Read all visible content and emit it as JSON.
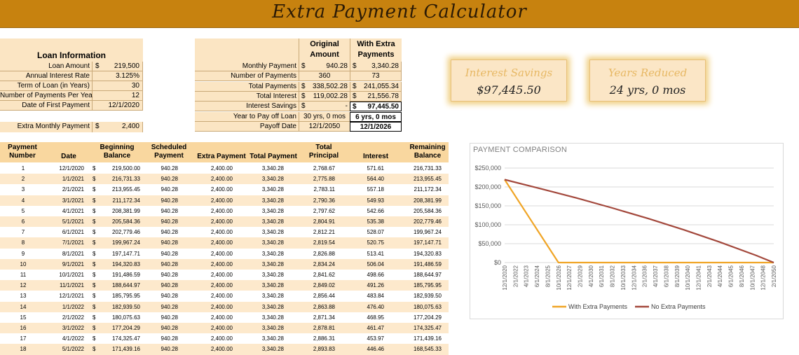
{
  "title": "Extra Payment Calculator",
  "loan_info": {
    "heading": "Loan Information",
    "rows": [
      {
        "label": "Loan Amount",
        "currency": "$",
        "value": "219,500"
      },
      {
        "label": "Annual Interest Rate",
        "currency": "",
        "value": "3.125%"
      },
      {
        "label": "Term of Loan (in Years)",
        "currency": "",
        "value": "30"
      },
      {
        "label": "Number of Payments Per Year",
        "currency": "",
        "value": "12"
      },
      {
        "label": "Date of First Payment",
        "currency": "",
        "value": "12/1/2020"
      }
    ],
    "extra_label": "Extra Monthly Payment",
    "extra_currency": "$",
    "extra_value": "2,400"
  },
  "comparison": {
    "col_original": "Original Amount",
    "col_extra": "With Extra Payments",
    "rows": [
      {
        "label": "Monthly Payment",
        "orig_cur": "$",
        "orig": "940.28",
        "extra_cur": "$",
        "extra": "3,340.28"
      },
      {
        "label": "Number of Payments",
        "orig_cur": "",
        "orig": "360",
        "extra_cur": "",
        "extra": "73"
      },
      {
        "label": "Total Payments",
        "orig_cur": "$",
        "orig": "338,502.28",
        "extra_cur": "$",
        "extra": "241,055.34"
      },
      {
        "label": "Total Interest",
        "orig_cur": "$",
        "orig": "119,002.28",
        "extra_cur": "$",
        "extra": "21,556.78"
      },
      {
        "label": "Interest Savings",
        "orig_cur": "$",
        "orig": "-",
        "extra_cur": "$",
        "extra": "97,445.50"
      },
      {
        "label": "Year to Pay off Loan",
        "orig_cur": "",
        "orig": "30 yrs, 0 mos",
        "extra_cur": "",
        "extra": "6 yrs, 0 mos"
      },
      {
        "label": "Payoff Date",
        "orig_cur": "",
        "orig": "12/1/2050",
        "extra_cur": "",
        "extra": "12/1/2026"
      }
    ]
  },
  "summary": {
    "interest_label": "Interest Savings",
    "interest_value": "$97,445.50",
    "years_label": "Years Reduced",
    "years_value": "24 yrs, 0 mos"
  },
  "amortization": {
    "headers": [
      "Payment Number",
      "Date",
      "Beginning Balance",
      "Scheduled Payment",
      "Extra Payment",
      "Total Payment",
      "Total Principal",
      "Interest",
      "Remaining Balance"
    ],
    "rows": [
      [
        "1",
        "12/1/2020",
        "219,500.00",
        "940.28",
        "2,400.00",
        "3,340.28",
        "2,768.67",
        "571.61",
        "216,731.33"
      ],
      [
        "2",
        "1/1/2021",
        "216,731.33",
        "940.28",
        "2,400.00",
        "3,340.28",
        "2,775.88",
        "564.40",
        "213,955.45"
      ],
      [
        "3",
        "2/1/2021",
        "213,955.45",
        "940.28",
        "2,400.00",
        "3,340.28",
        "2,783.11",
        "557.18",
        "211,172.34"
      ],
      [
        "4",
        "3/1/2021",
        "211,172.34",
        "940.28",
        "2,400.00",
        "3,340.28",
        "2,790.36",
        "549.93",
        "208,381.99"
      ],
      [
        "5",
        "4/1/2021",
        "208,381.99",
        "940.28",
        "2,400.00",
        "3,340.28",
        "2,797.62",
        "542.66",
        "205,584.36"
      ],
      [
        "6",
        "5/1/2021",
        "205,584.36",
        "940.28",
        "2,400.00",
        "3,340.28",
        "2,804.91",
        "535.38",
        "202,779.46"
      ],
      [
        "7",
        "6/1/2021",
        "202,779.46",
        "940.28",
        "2,400.00",
        "3,340.28",
        "2,812.21",
        "528.07",
        "199,967.24"
      ],
      [
        "8",
        "7/1/2021",
        "199,967.24",
        "940.28",
        "2,400.00",
        "3,340.28",
        "2,819.54",
        "520.75",
        "197,147.71"
      ],
      [
        "9",
        "8/1/2021",
        "197,147.71",
        "940.28",
        "2,400.00",
        "3,340.28",
        "2,826.88",
        "513.41",
        "194,320.83"
      ],
      [
        "10",
        "9/1/2021",
        "194,320.83",
        "940.28",
        "2,400.00",
        "3,340.28",
        "2,834.24",
        "506.04",
        "191,486.59"
      ],
      [
        "11",
        "10/1/2021",
        "191,486.59",
        "940.28",
        "2,400.00",
        "3,340.28",
        "2,841.62",
        "498.66",
        "188,644.97"
      ],
      [
        "12",
        "11/1/2021",
        "188,644.97",
        "940.28",
        "2,400.00",
        "3,340.28",
        "2,849.02",
        "491.26",
        "185,795.95"
      ],
      [
        "13",
        "12/1/2021",
        "185,795.95",
        "940.28",
        "2,400.00",
        "3,340.28",
        "2,856.44",
        "483.84",
        "182,939.50"
      ],
      [
        "14",
        "1/1/2022",
        "182,939.50",
        "940.28",
        "2,400.00",
        "3,340.28",
        "2,863.88",
        "476.40",
        "180,075.63"
      ],
      [
        "15",
        "2/1/2022",
        "180,075.63",
        "940.28",
        "2,400.00",
        "3,340.28",
        "2,871.34",
        "468.95",
        "177,204.29"
      ],
      [
        "16",
        "3/1/2022",
        "177,204.29",
        "940.28",
        "2,400.00",
        "3,340.28",
        "2,878.81",
        "461.47",
        "174,325.47"
      ],
      [
        "17",
        "4/1/2022",
        "174,325.47",
        "940.28",
        "2,400.00",
        "3,340.28",
        "2,886.31",
        "453.97",
        "171,439.16"
      ],
      [
        "18",
        "5/1/2022",
        "171,439.16",
        "940.28",
        "2,400.00",
        "3,340.28",
        "2,893.83",
        "446.46",
        "168,545.33"
      ]
    ]
  },
  "chart_data": {
    "type": "line",
    "title": "PAYMENT COMPARISON",
    "y_ticks": [
      "$0",
      "$50,000",
      "$100,000",
      "$150,000",
      "$200,000",
      "$250,000"
    ],
    "ylim": [
      0,
      250000
    ],
    "x_ticks": [
      "12/1/2020",
      "2/1/2022",
      "4/1/2023",
      "6/1/2024",
      "8/1/2025",
      "10/1/2026",
      "12/1/2027",
      "2/1/2029",
      "4/1/2030",
      "6/1/2031",
      "8/1/2032",
      "10/1/2033",
      "12/1/2034",
      "2/1/2036",
      "4/1/2037",
      "6/1/2038",
      "8/1/2039",
      "10/1/2040",
      "12/1/2041",
      "2/1/2043",
      "4/1/2044",
      "6/1/2045",
      "8/1/2046",
      "10/1/2047",
      "12/1/2048",
      "2/1/2050"
    ],
    "grid": true,
    "legend_position": "bottom",
    "series": [
      {
        "name": "With Extra Payments",
        "color": "#f0a526",
        "x_year": [
          2020.92,
          2026.92,
          2050.92
        ],
        "values": [
          219500,
          0,
          0
        ]
      },
      {
        "name": "No Extra Payments",
        "color": "#a3483c",
        "x_year": [
          2020.92,
          2024.92,
          2028.92,
          2032.92,
          2036.92,
          2040.92,
          2044.92,
          2048.92,
          2050.92
        ],
        "values": [
          219500,
          195600,
          171000,
          144500,
          116500,
          86500,
          54000,
          19300,
          0
        ]
      }
    ]
  }
}
